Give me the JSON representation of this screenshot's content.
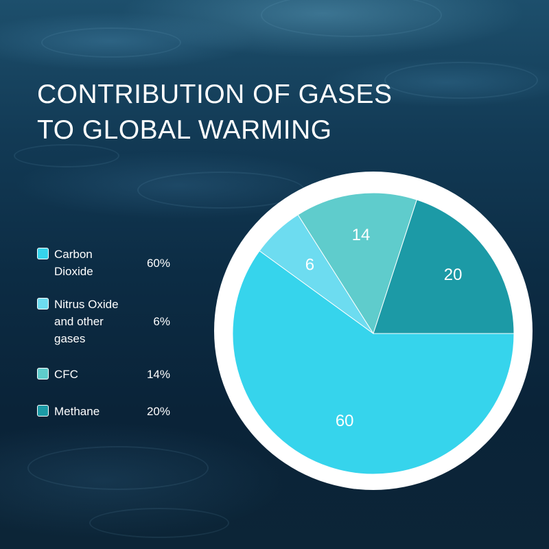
{
  "title_lines": [
    "CONTRIBUTION OF GASES",
    "TO GLOBAL WARMING"
  ],
  "chart_data": {
    "type": "pie",
    "title": "CONTRIBUTION OF GASES TO GLOBAL WARMING",
    "categories": [
      "Carbon Dioxide",
      "Nitrus Oxide and other gases",
      "CFC",
      "Methane"
    ],
    "values": [
      60,
      6,
      14,
      20
    ],
    "slice_labels": [
      "60",
      "6",
      "14",
      "20"
    ],
    "colors": [
      "#36d4ec",
      "#6ddcf0",
      "#5fcccc",
      "#1c9aa6"
    ],
    "legend": {
      "placement": "left",
      "items": [
        {
          "label_lines": [
            "Carbon",
            "Dioxide"
          ],
          "value": "60%",
          "color": "#36d4ec"
        },
        {
          "label_lines": [
            "Nitrus Oxide",
            "and other",
            "gases"
          ],
          "value": "6%",
          "color": "#6ddcf0"
        },
        {
          "label_lines": [
            "CFC"
          ],
          "value": "14%",
          "color": "#5fcccc"
        },
        {
          "label_lines": [
            "Methane"
          ],
          "value": "20%",
          "color": "#1c9aa6"
        }
      ]
    }
  }
}
